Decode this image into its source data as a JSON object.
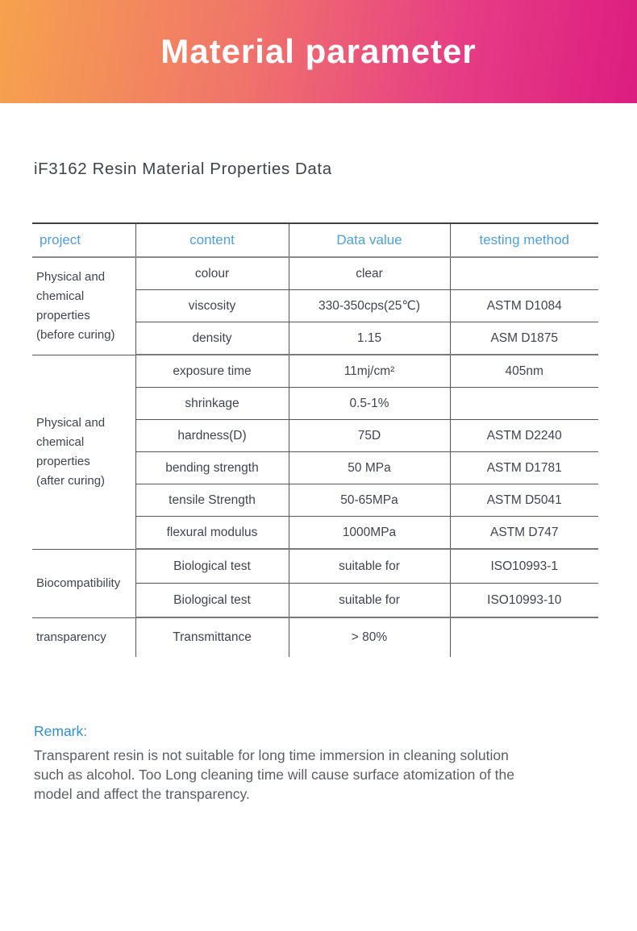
{
  "banner": {
    "title": "Material parameter",
    "gradient_left": "#f6a24d",
    "gradient_right": "#dc1d80"
  },
  "page_title": "iF3162 Resin Material Properties Data",
  "table": {
    "accent_color": "#4da0da",
    "headers": [
      "project",
      "content",
      "Data value",
      "testing method"
    ],
    "groups": [
      {
        "project_text": "Physical and\nchemical\nproperties\n(before curing)",
        "rows": [
          [
            "colour",
            "clear",
            ""
          ],
          [
            "viscosity",
            "330-350cps(25℃)",
            "ASTM D1084"
          ],
          [
            "density",
            "1.15",
            "ASM D1875"
          ]
        ]
      },
      {
        "project_text": "Physical and\nchemical\nproperties\n(after curing)",
        "rows": [
          [
            "exposure time",
            "11mj/cm²",
            "405nm"
          ],
          [
            "shrinkage",
            "0.5-1%",
            ""
          ],
          [
            "hardness(D)",
            "75D",
            "ASTM D2240"
          ],
          [
            "bending strength",
            "50 MPa",
            "ASTM D1781"
          ],
          [
            "tensile Strength",
            "50-65MPa",
            "ASTM D5041"
          ],
          [
            "flexural modulus",
            "1000MPa",
            "ASTM D747"
          ]
        ]
      },
      {
        "project_text": "Biocompatibility",
        "rows": [
          [
            "Biological test",
            "suitable for",
            "ISO10993-1"
          ],
          [
            "Biological test",
            "suitable for",
            "ISO10993-10"
          ]
        ]
      },
      {
        "project_text": "transparency",
        "rows": [
          [
            "Transmittance",
            "> 80%",
            ""
          ]
        ]
      }
    ]
  },
  "remark": {
    "heading": "Remark:",
    "body": "Transparent resin is not suitable for long time immersion in cleaning solution\nsuch as alcohol. Too Long cleaning time will cause surface atomization of the\nmodel and affect the transparency."
  }
}
